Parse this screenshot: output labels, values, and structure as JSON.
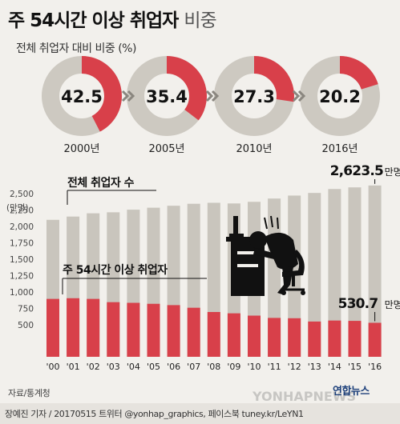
{
  "title_main": "주 54시간 이상 취업자",
  "title_light": "비중",
  "subtitle": "전체 취업자 대비 비중 (%)",
  "colors": {
    "accent": "#d8404a",
    "bar": "#c9c5bd",
    "ring_bg": "#cdc9c1",
    "text": "#222222"
  },
  "chart_data": [
    {
      "type": "pie",
      "categories": [
        "2000년",
        "2005년",
        "2010년",
        "2016년"
      ],
      "values": [
        42.5,
        35.4,
        27.3,
        20.2
      ],
      "title": "전체 취업자 대비 비중 (%)"
    },
    {
      "type": "bar",
      "categories": [
        "'00",
        "'01",
        "'02",
        "'03",
        "'04",
        "'05",
        "'06",
        "'07",
        "'08",
        "'09",
        "'10",
        "'11",
        "'12",
        "'13",
        "'14",
        "'15",
        "'16"
      ],
      "series": [
        {
          "name": "전체 취업자 수",
          "values": [
            2100,
            2150,
            2200,
            2215,
            2255,
            2285,
            2315,
            2345,
            2360,
            2350,
            2375,
            2425,
            2470,
            2510,
            2570,
            2595,
            2623.5
          ]
        },
        {
          "name": "주 54시간 이상 취업자",
          "values": [
            895,
            905,
            895,
            845,
            835,
            820,
            800,
            760,
            695,
            675,
            640,
            605,
            600,
            550,
            565,
            560,
            530.7
          ]
        }
      ],
      "ylabel": "(만명)",
      "ylim": [
        0,
        2500
      ],
      "yticks": [
        "500",
        "750",
        "1,000",
        "1,250",
        "1,500",
        "1,750",
        "2,000",
        "2,250",
        "2,500"
      ],
      "annotations": {
        "last_total": "2,623.5",
        "last_total_unit": "만명",
        "last_sub": "530.7",
        "last_sub_unit": "만명"
      },
      "grid": false
    }
  ],
  "source": "자료/통계청",
  "credit": "장예진 기자 / 20170515 트위터 @yonhap_graphics, 페이스북 tuney.kr/LeYN1",
  "agency": "연합뉴스",
  "watermark": "YONHAPNEWS",
  "illustration": "overworked-worker-at-desk-icon"
}
